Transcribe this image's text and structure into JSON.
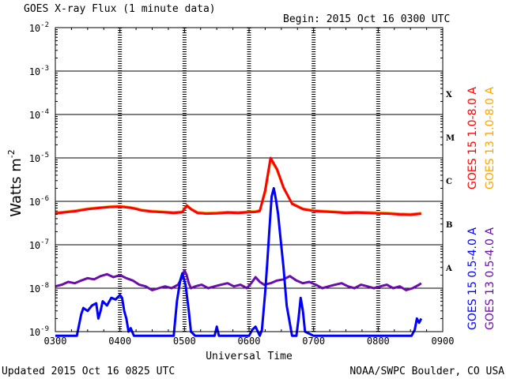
{
  "header": {
    "title": "GOES X-ray Flux (1 minute data)",
    "begin": "Begin: 2015 Oct 16 0300 UTC"
  },
  "footer": {
    "updated": "Updated 2015 Oct 16 0825 UTC",
    "credit": "NOAA/SWPC Boulder, CO USA"
  },
  "colors": {
    "goes15_long": "#ff0000",
    "goes13_long": "#ffa500",
    "goes15_short": "#0000ff",
    "goes13_short": "#6a0dad"
  },
  "chart_data": {
    "type": "line",
    "title": "GOES X-ray Flux (1 minute data)",
    "xlabel": "Universal Time",
    "ylabel": "Watts m",
    "ylabel_sup": "-2",
    "yscale": "log",
    "ylim": [
      1e-09,
      0.01
    ],
    "xlim": [
      0,
      360
    ],
    "x_unit": "minutes after 0300 UTC",
    "x_ticks": [
      {
        "value": 0,
        "label": "0300"
      },
      {
        "value": 60,
        "label": "0400"
      },
      {
        "value": 120,
        "label": "0500"
      },
      {
        "value": 180,
        "label": "0600"
      },
      {
        "value": 240,
        "label": "0700"
      },
      {
        "value": 300,
        "label": "0800"
      },
      {
        "value": 360,
        "label": "0900"
      }
    ],
    "y_ticks": [
      {
        "exp": -9,
        "label": "10",
        "sup": "-9"
      },
      {
        "exp": -8,
        "label": "10",
        "sup": "-8"
      },
      {
        "exp": -7,
        "label": "10",
        "sup": "-7"
      },
      {
        "exp": -6,
        "label": "10",
        "sup": "-6"
      },
      {
        "exp": -5,
        "label": "10",
        "sup": "-5"
      },
      {
        "exp": -4,
        "label": "10",
        "sup": "-4"
      },
      {
        "exp": -3,
        "label": "10",
        "sup": "-3"
      },
      {
        "exp": -2,
        "label": "10",
        "sup": "-2"
      }
    ],
    "flare_classes": [
      {
        "label": "A",
        "value": 3e-08
      },
      {
        "label": "B",
        "value": 3e-07
      },
      {
        "label": "C",
        "value": 3e-06
      },
      {
        "label": "M",
        "value": 3e-05
      },
      {
        "label": "X",
        "value": 0.0003
      }
    ],
    "legend_right_outer": [
      {
        "name": "GOES 15 1.0-8.0 A",
        "color": "#ff0000"
      },
      {
        "name": "GOES 15 0.5-4.0 A",
        "color": "#0000ff"
      }
    ],
    "legend_right_inner": [
      {
        "name": "GOES 13 1.0-8.0 A",
        "color": "#ffa500"
      },
      {
        "name": "GOES 13 0.5-4.0 A",
        "color": "#6a0dad"
      }
    ],
    "series": [
      {
        "name": "GOES 13 1.0-8.0 A",
        "color": "#ffa500",
        "x": [
          0,
          10,
          20,
          30,
          40,
          50,
          60,
          70,
          76,
          80,
          90,
          100,
          110,
          118,
          122,
          126,
          132,
          140,
          150,
          160,
          170,
          180,
          186,
          190,
          195,
          200,
          206,
          212,
          220,
          230,
          240,
          250,
          260,
          270,
          280,
          290,
          300,
          310,
          320,
          330,
          340
        ],
        "y": [
          5.5e-07,
          5.8e-07,
          6.2e-07,
          6.8e-07,
          7.2e-07,
          7.6e-07,
          7.8e-07,
          7.3e-07,
          6.8e-07,
          6.4e-07,
          6e-07,
          5.8e-07,
          5.6e-07,
          5.8e-07,
          8.2e-07,
          6.8e-07,
          5.6e-07,
          5.4e-07,
          5.5e-07,
          5.7e-07,
          5.6e-07,
          5.8e-07,
          5.9e-07,
          6.2e-07,
          1.6e-06,
          9.2e-06,
          5.2e-06,
          2e-06,
          9e-07,
          6.8e-07,
          6.2e-07,
          6e-07,
          5.8e-07,
          5.6e-07,
          5.7e-07,
          5.6e-07,
          5.5e-07,
          5.4e-07,
          5.2e-07,
          5.1e-07,
          5.4e-07
        ]
      },
      {
        "name": "GOES 15 1.0-8.0 A",
        "color": "#ff0000",
        "x": [
          0,
          10,
          20,
          30,
          40,
          50,
          60,
          70,
          76,
          80,
          90,
          100,
          110,
          118,
          122,
          126,
          132,
          140,
          150,
          160,
          170,
          180,
          186,
          190,
          195,
          200,
          206,
          212,
          220,
          230,
          240,
          250,
          260,
          270,
          280,
          290,
          300,
          310,
          320,
          330,
          340
        ],
        "y": [
          5.3e-07,
          5.6e-07,
          6e-07,
          6.6e-07,
          7e-07,
          7.4e-07,
          7.6e-07,
          7.1e-07,
          6.6e-07,
          6.2e-07,
          5.8e-07,
          5.6e-07,
          5.4e-07,
          5.6e-07,
          8e-07,
          6.6e-07,
          5.4e-07,
          5.2e-07,
          5.3e-07,
          5.5e-07,
          5.4e-07,
          5.6e-07,
          5.7e-07,
          6e-07,
          1.8e-06,
          1e-05,
          5.5e-06,
          2.1e-06,
          8.8e-07,
          6.6e-07,
          6e-07,
          5.8e-07,
          5.6e-07,
          5.4e-07,
          5.5e-07,
          5.4e-07,
          5.3e-07,
          5.2e-07,
          5e-07,
          4.9e-07,
          5.2e-07
        ]
      },
      {
        "name": "GOES 13 0.5-4.0 A",
        "color": "#6a0dad",
        "x": [
          0,
          6,
          12,
          18,
          24,
          30,
          36,
          42,
          48,
          54,
          60,
          66,
          72,
          78,
          84,
          90,
          96,
          102,
          108,
          114,
          118,
          120,
          122,
          124,
          126,
          130,
          136,
          142,
          148,
          154,
          160,
          166,
          172,
          178,
          182,
          186,
          190,
          194,
          200,
          206,
          212,
          218,
          224,
          230,
          236,
          242,
          248,
          254,
          260,
          266,
          272,
          278,
          284,
          290,
          296,
          302,
          308,
          314,
          320,
          326,
          332,
          338,
          340
        ],
        "y": [
          1.1e-08,
          1.2e-08,
          1.4e-08,
          1.3e-08,
          1.5e-08,
          1.7e-08,
          1.6e-08,
          1.9e-08,
          2.1e-08,
          1.8e-08,
          2e-08,
          1.7e-08,
          1.5e-08,
          1.2e-08,
          1.1e-08,
          9e-09,
          1e-08,
          1.1e-08,
          1e-08,
          1.2e-08,
          1.8e-08,
          2.6e-08,
          2e-08,
          1.3e-08,
          1e-08,
          1.1e-08,
          1.2e-08,
          1e-08,
          1.1e-08,
          1.2e-08,
          1.3e-08,
          1.1e-08,
          1.2e-08,
          1e-08,
          1.3e-08,
          1.8e-08,
          1.4e-08,
          1.2e-08,
          1.3e-08,
          1.5e-08,
          1.6e-08,
          1.9e-08,
          1.5e-08,
          1.3e-08,
          1.4e-08,
          1.2e-08,
          1e-08,
          1.1e-08,
          1.2e-08,
          1.3e-08,
          1.1e-08,
          1e-08,
          1.2e-08,
          1.1e-08,
          1e-08,
          1.1e-08,
          1.2e-08,
          1e-08,
          1.1e-08,
          9e-09,
          1e-08,
          1.2e-08,
          1.3e-08
        ]
      },
      {
        "name": "GOES 15 0.5-4.0 A",
        "color": "#0000ff",
        "x": [
          0,
          20,
          24,
          26,
          30,
          34,
          38,
          40,
          42,
          44,
          48,
          52,
          56,
          60,
          62,
          64,
          66,
          68,
          70,
          73,
          80,
          110,
          113,
          116,
          118,
          121,
          124,
          126,
          130,
          140,
          148,
          150,
          152,
          160,
          180,
          183,
          186,
          190,
          192,
          195,
          197,
          199,
          201,
          203,
          205,
          207,
          209,
          212,
          215,
          220,
          224,
          226,
          228,
          230,
          232,
          240,
          300,
          331,
          334,
          336,
          338,
          340
        ],
        "y": [
          8e-10,
          8e-10,
          2.5e-09,
          3.5e-09,
          3e-09,
          4e-09,
          4.5e-09,
          2e-09,
          3e-09,
          5e-09,
          4e-09,
          6e-09,
          5.5e-09,
          7e-09,
          6e-09,
          3e-09,
          2e-09,
          1e-09,
          1.2e-09,
          8e-10,
          8e-10,
          8e-10,
          5e-09,
          1.5e-08,
          2.2e-08,
          1.2e-08,
          3e-09,
          1e-09,
          8e-10,
          8e-10,
          8e-10,
          1.3e-09,
          8e-10,
          8e-10,
          8e-10,
          1.1e-09,
          1.3e-09,
          8e-10,
          1.1e-09,
          8e-09,
          4e-08,
          2.5e-07,
          1.3e-06,
          2e-06,
          1.1e-06,
          5e-07,
          1.6e-07,
          3e-08,
          4e-09,
          8e-10,
          8e-10,
          2e-09,
          6e-09,
          3e-09,
          1e-09,
          8e-10,
          8e-10,
          8e-10,
          1.1e-09,
          2e-09,
          1.6e-09,
          2e-09
        ]
      }
    ]
  }
}
